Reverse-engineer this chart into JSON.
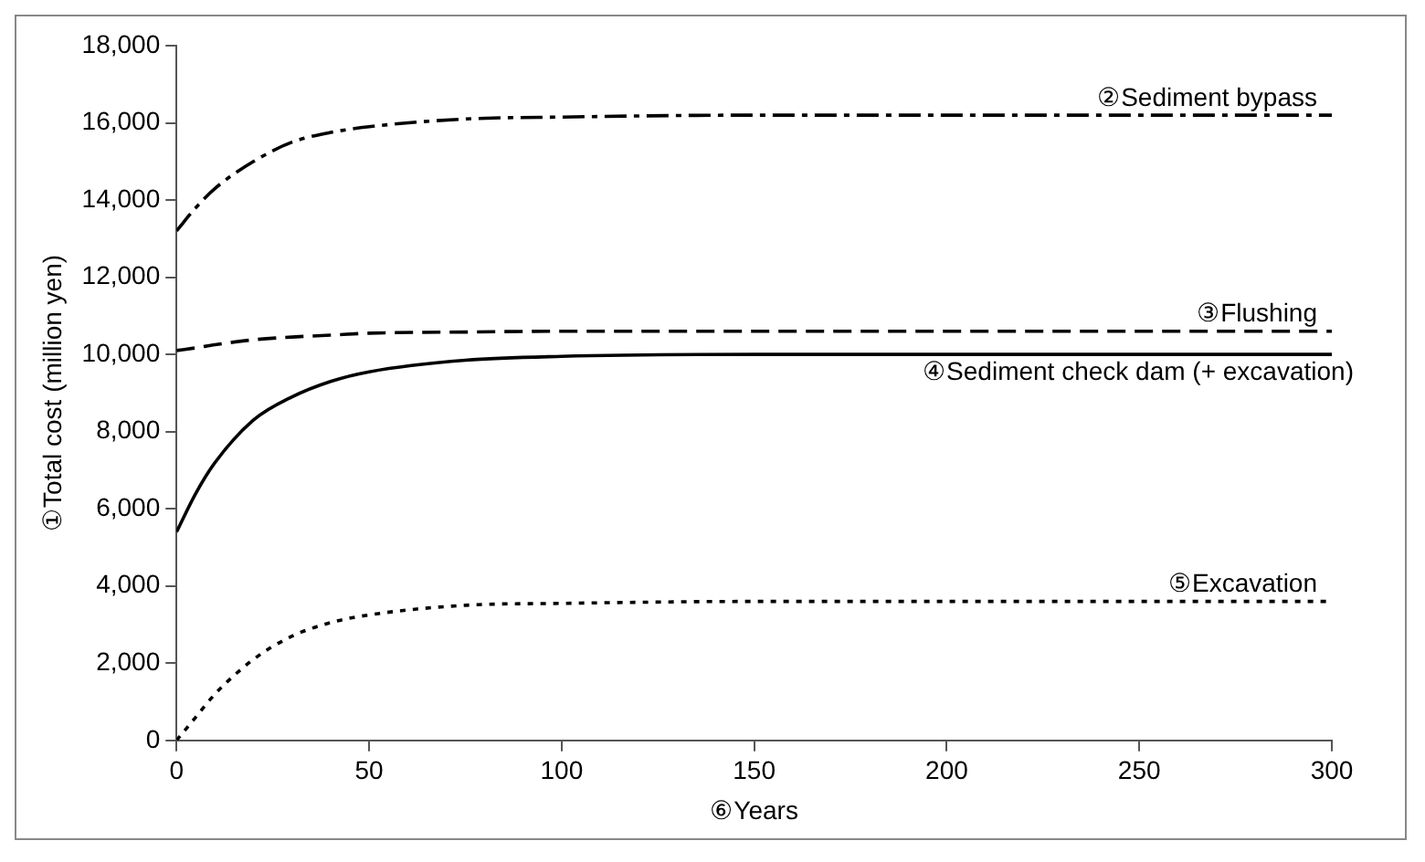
{
  "chart_data": {
    "type": "line",
    "xlabel": "⑥Years",
    "ylabel": "①Total cost (million yen)",
    "xlim": [
      0,
      300
    ],
    "xticks": [
      0,
      50,
      100,
      150,
      200,
      250,
      300
    ],
    "ylim": [
      0,
      18000
    ],
    "yticks": [
      {
        "value": 0,
        "label": "0"
      },
      {
        "value": 2000,
        "label": "2,000"
      },
      {
        "value": 4000,
        "label": "4,000"
      },
      {
        "value": 6000,
        "label": "6,000"
      },
      {
        "value": 8000,
        "label": "8,000"
      },
      {
        "value": 10000,
        "label": "10,000"
      },
      {
        "value": 12000,
        "label": "12,000"
      },
      {
        "value": 14000,
        "label": "14,000"
      },
      {
        "value": 16000,
        "label": "16,000"
      },
      {
        "value": 18000,
        "label": "18,000"
      }
    ],
    "grid": false,
    "legend": false,
    "marker": "none",
    "x": [
      0,
      5,
      10,
      20,
      30,
      40,
      50,
      75,
      100,
      150,
      200,
      300
    ],
    "series": [
      {
        "name": "②Sediment bypass",
        "color": "#000000",
        "line_style": "dashdot",
        "values": [
          13200,
          13800,
          14300,
          15000,
          15500,
          15750,
          15900,
          16100,
          16150,
          16200,
          16200,
          16200
        ]
      },
      {
        "name": "③Flushing",
        "color": "#000000",
        "line_style": "dashed",
        "values": [
          10100,
          10170,
          10250,
          10380,
          10450,
          10500,
          10550,
          10580,
          10600,
          10600,
          10600,
          10600
        ]
      },
      {
        "name": "④Sediment check dam (+ excavation)",
        "color": "#000000",
        "line_style": "solid",
        "values": [
          5400,
          6400,
          7200,
          8300,
          8900,
          9300,
          9550,
          9850,
          9950,
          10000,
          10000,
          10000
        ]
      },
      {
        "name": "⑤Excavation",
        "color": "#000000",
        "line_style": "dotted",
        "values": [
          0,
          600,
          1200,
          2100,
          2700,
          3050,
          3250,
          3500,
          3550,
          3600,
          3600,
          3600
        ]
      }
    ]
  }
}
